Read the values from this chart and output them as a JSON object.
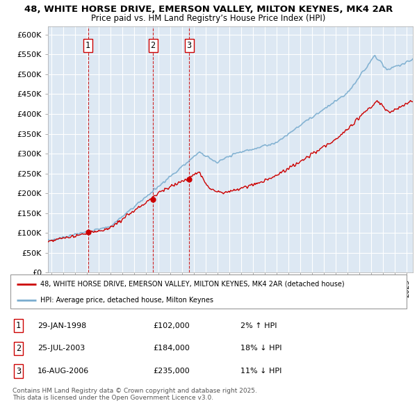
{
  "title_line1": "48, WHITE HORSE DRIVE, EMERSON VALLEY, MILTON KEYNES, MK4 2AR",
  "title_line2": "Price paid vs. HM Land Registry’s House Price Index (HPI)",
  "ylim": [
    0,
    620000
  ],
  "xlim_start": 1994.7,
  "xlim_end": 2025.5,
  "yticks": [
    0,
    50000,
    100000,
    150000,
    200000,
    250000,
    300000,
    350000,
    400000,
    450000,
    500000,
    550000,
    600000
  ],
  "ytick_labels": [
    "£0",
    "£50K",
    "£100K",
    "£150K",
    "£200K",
    "£250K",
    "£300K",
    "£350K",
    "£400K",
    "£450K",
    "£500K",
    "£550K",
    "£600K"
  ],
  "transactions": [
    {
      "num": 1,
      "date": "29-JAN-1998",
      "price": 102000,
      "year": 1998.08,
      "hpi_diff": "2% ↑ HPI"
    },
    {
      "num": 2,
      "date": "25-JUL-2003",
      "price": 184000,
      "year": 2003.56,
      "hpi_diff": "18% ↓ HPI"
    },
    {
      "num": 3,
      "date": "16-AUG-2006",
      "price": 235000,
      "year": 2006.62,
      "hpi_diff": "11% ↓ HPI"
    }
  ],
  "legend_line1": "48, WHITE HORSE DRIVE, EMERSON VALLEY, MILTON KEYNES, MK4 2AR (detached house)",
  "legend_line2": "HPI: Average price, detached house, Milton Keynes",
  "footnote": "Contains HM Land Registry data © Crown copyright and database right 2025.\nThis data is licensed under the Open Government Licence v3.0.",
  "red_color": "#cc0000",
  "blue_color": "#7aadcf",
  "plot_bg": "#dde8f3",
  "grid_color": "#ffffff"
}
